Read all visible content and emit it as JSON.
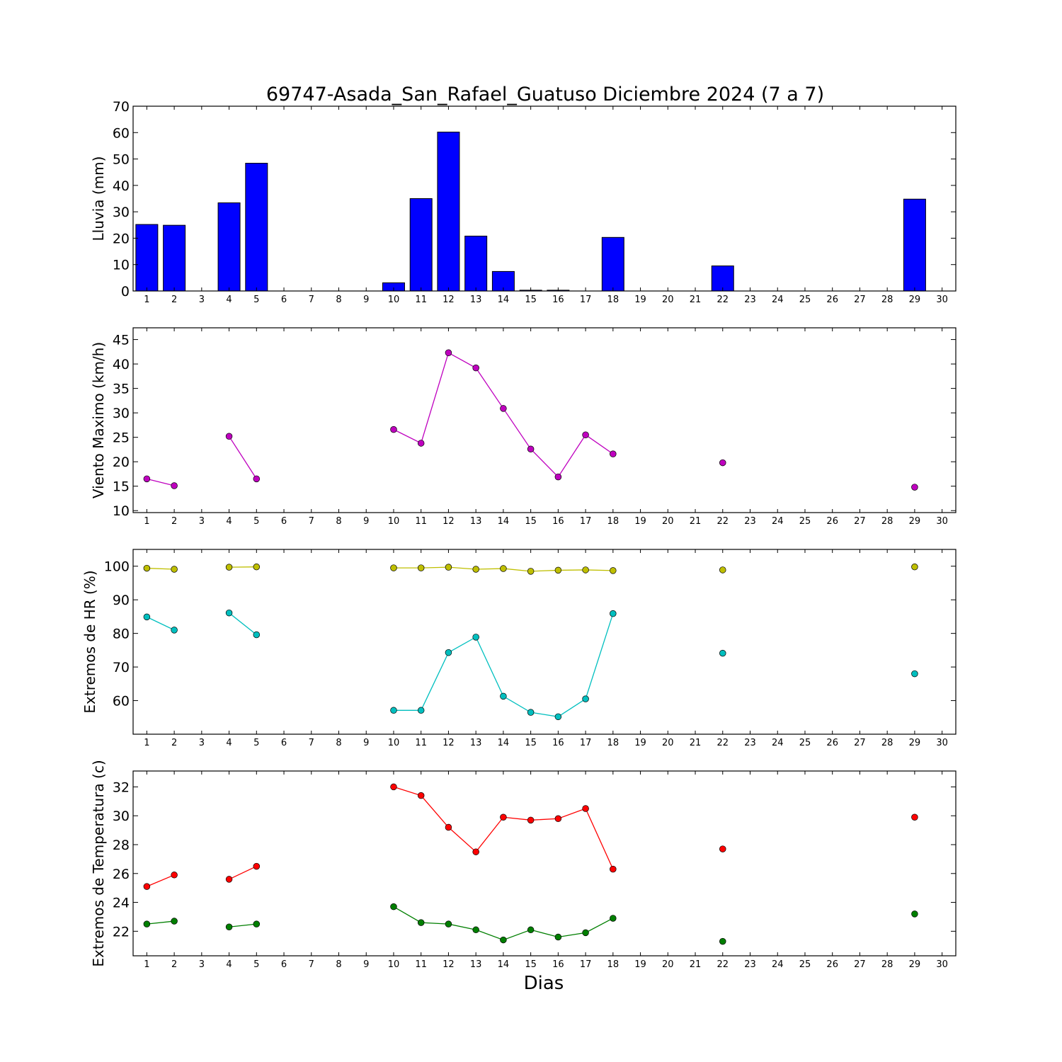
{
  "chart_data": {
    "title": "69747-Asada_San_Rafael_Guatuso Diciembre 2024  (7 a 7)",
    "xlabel": "Dias",
    "x_ticks": [
      1,
      2,
      3,
      4,
      5,
      6,
      7,
      8,
      9,
      10,
      11,
      12,
      13,
      14,
      15,
      16,
      17,
      18,
      19,
      20,
      21,
      22,
      23,
      24,
      25,
      26,
      27,
      28,
      29,
      30
    ],
    "panels": [
      {
        "id": "lluvia",
        "type": "bar",
        "ylabel": "Lluvia (mm)",
        "ylim": [
          0,
          70
        ],
        "yticks": [
          0,
          10,
          20,
          30,
          40,
          50,
          60,
          70
        ],
        "series": [
          {
            "color": "#0000ff",
            "x": [
              1,
              2,
              4,
              5,
              10,
              11,
              12,
              13,
              14,
              15,
              16,
              18,
              22,
              29
            ],
            "values": [
              25.2,
              24.9,
              33.4,
              48.4,
              3.1,
              35.0,
              60.2,
              20.8,
              7.4,
              0.3,
              0.3,
              20.3,
              9.5,
              34.8
            ]
          }
        ]
      },
      {
        "id": "viento",
        "type": "line",
        "ylabel": "Viento Maximo (km/h)",
        "ylim": [
          9.6,
          47.4
        ],
        "yticks": [
          10,
          15,
          20,
          25,
          30,
          35,
          40,
          45
        ],
        "series": [
          {
            "color": "#bf00bf",
            "x": [
              1,
              2,
              3,
              4,
              5,
              6,
              7,
              8,
              9,
              10,
              11,
              12,
              13,
              14,
              15,
              16,
              17,
              18,
              19,
              20,
              21,
              22,
              23,
              24,
              25,
              26,
              27,
              28,
              29
            ],
            "values": [
              16.5,
              15.1,
              null,
              25.2,
              16.5,
              null,
              null,
              null,
              null,
              26.6,
              23.8,
              42.3,
              39.2,
              30.9,
              22.6,
              16.9,
              25.5,
              21.6,
              null,
              null,
              null,
              19.8,
              null,
              null,
              null,
              null,
              null,
              null,
              14.8
            ]
          }
        ]
      },
      {
        "id": "hr",
        "type": "line",
        "ylabel": "Extremos de HR (%)",
        "ylim": [
          50,
          105
        ],
        "yticks": [
          60,
          70,
          80,
          90,
          100
        ],
        "series": [
          {
            "color": "#bfbf00",
            "x": [
              1,
              2,
              3,
              4,
              5,
              6,
              7,
              8,
              9,
              10,
              11,
              12,
              13,
              14,
              15,
              16,
              17,
              18,
              19,
              20,
              21,
              22,
              23,
              24,
              25,
              26,
              27,
              28,
              29
            ],
            "values": [
              99.4,
              99.1,
              null,
              99.7,
              99.8,
              null,
              null,
              null,
              null,
              99.5,
              99.5,
              99.7,
              99.1,
              99.3,
              98.5,
              98.8,
              98.9,
              98.7,
              null,
              null,
              null,
              98.9,
              null,
              null,
              null,
              null,
              null,
              null,
              99.8
            ]
          },
          {
            "color": "#00bfbf",
            "x": [
              1,
              2,
              3,
              4,
              5,
              6,
              7,
              8,
              9,
              10,
              11,
              12,
              13,
              14,
              15,
              16,
              17,
              18,
              19,
              20,
              21,
              22,
              23,
              24,
              25,
              26,
              27,
              28,
              29
            ],
            "values": [
              84.9,
              81.0,
              null,
              86.1,
              79.6,
              null,
              null,
              null,
              null,
              57.1,
              57.1,
              74.3,
              78.9,
              61.3,
              56.5,
              55.2,
              60.5,
              85.9,
              null,
              null,
              null,
              74.1,
              null,
              null,
              null,
              null,
              null,
              null,
              68.0
            ]
          }
        ]
      },
      {
        "id": "temp",
        "type": "line",
        "ylabel": "Extremos de Temperatura (c)",
        "ylim": [
          20.3,
          33.1
        ],
        "yticks": [
          22,
          24,
          26,
          28,
          30,
          32
        ],
        "series": [
          {
            "color": "#ff0000",
            "x": [
              1,
              2,
              3,
              4,
              5,
              6,
              7,
              8,
              9,
              10,
              11,
              12,
              13,
              14,
              15,
              16,
              17,
              18,
              19,
              20,
              21,
              22,
              23,
              24,
              25,
              26,
              27,
              28,
              29
            ],
            "values": [
              25.1,
              25.9,
              null,
              25.6,
              26.5,
              null,
              null,
              null,
              null,
              32.0,
              31.4,
              29.2,
              27.5,
              29.9,
              29.7,
              29.8,
              30.5,
              26.3,
              null,
              null,
              null,
              27.7,
              null,
              null,
              null,
              null,
              null,
              null,
              29.9
            ]
          },
          {
            "color": "#007f00",
            "x": [
              1,
              2,
              3,
              4,
              5,
              6,
              7,
              8,
              9,
              10,
              11,
              12,
              13,
              14,
              15,
              16,
              17,
              18,
              19,
              20,
              21,
              22,
              23,
              24,
              25,
              26,
              27,
              28,
              29
            ],
            "values": [
              22.5,
              22.7,
              null,
              22.3,
              22.5,
              null,
              null,
              null,
              null,
              23.7,
              22.6,
              22.5,
              22.1,
              21.4,
              22.1,
              21.6,
              21.9,
              22.9,
              null,
              null,
              null,
              21.3,
              null,
              null,
              null,
              null,
              null,
              null,
              23.2
            ]
          }
        ]
      }
    ]
  }
}
